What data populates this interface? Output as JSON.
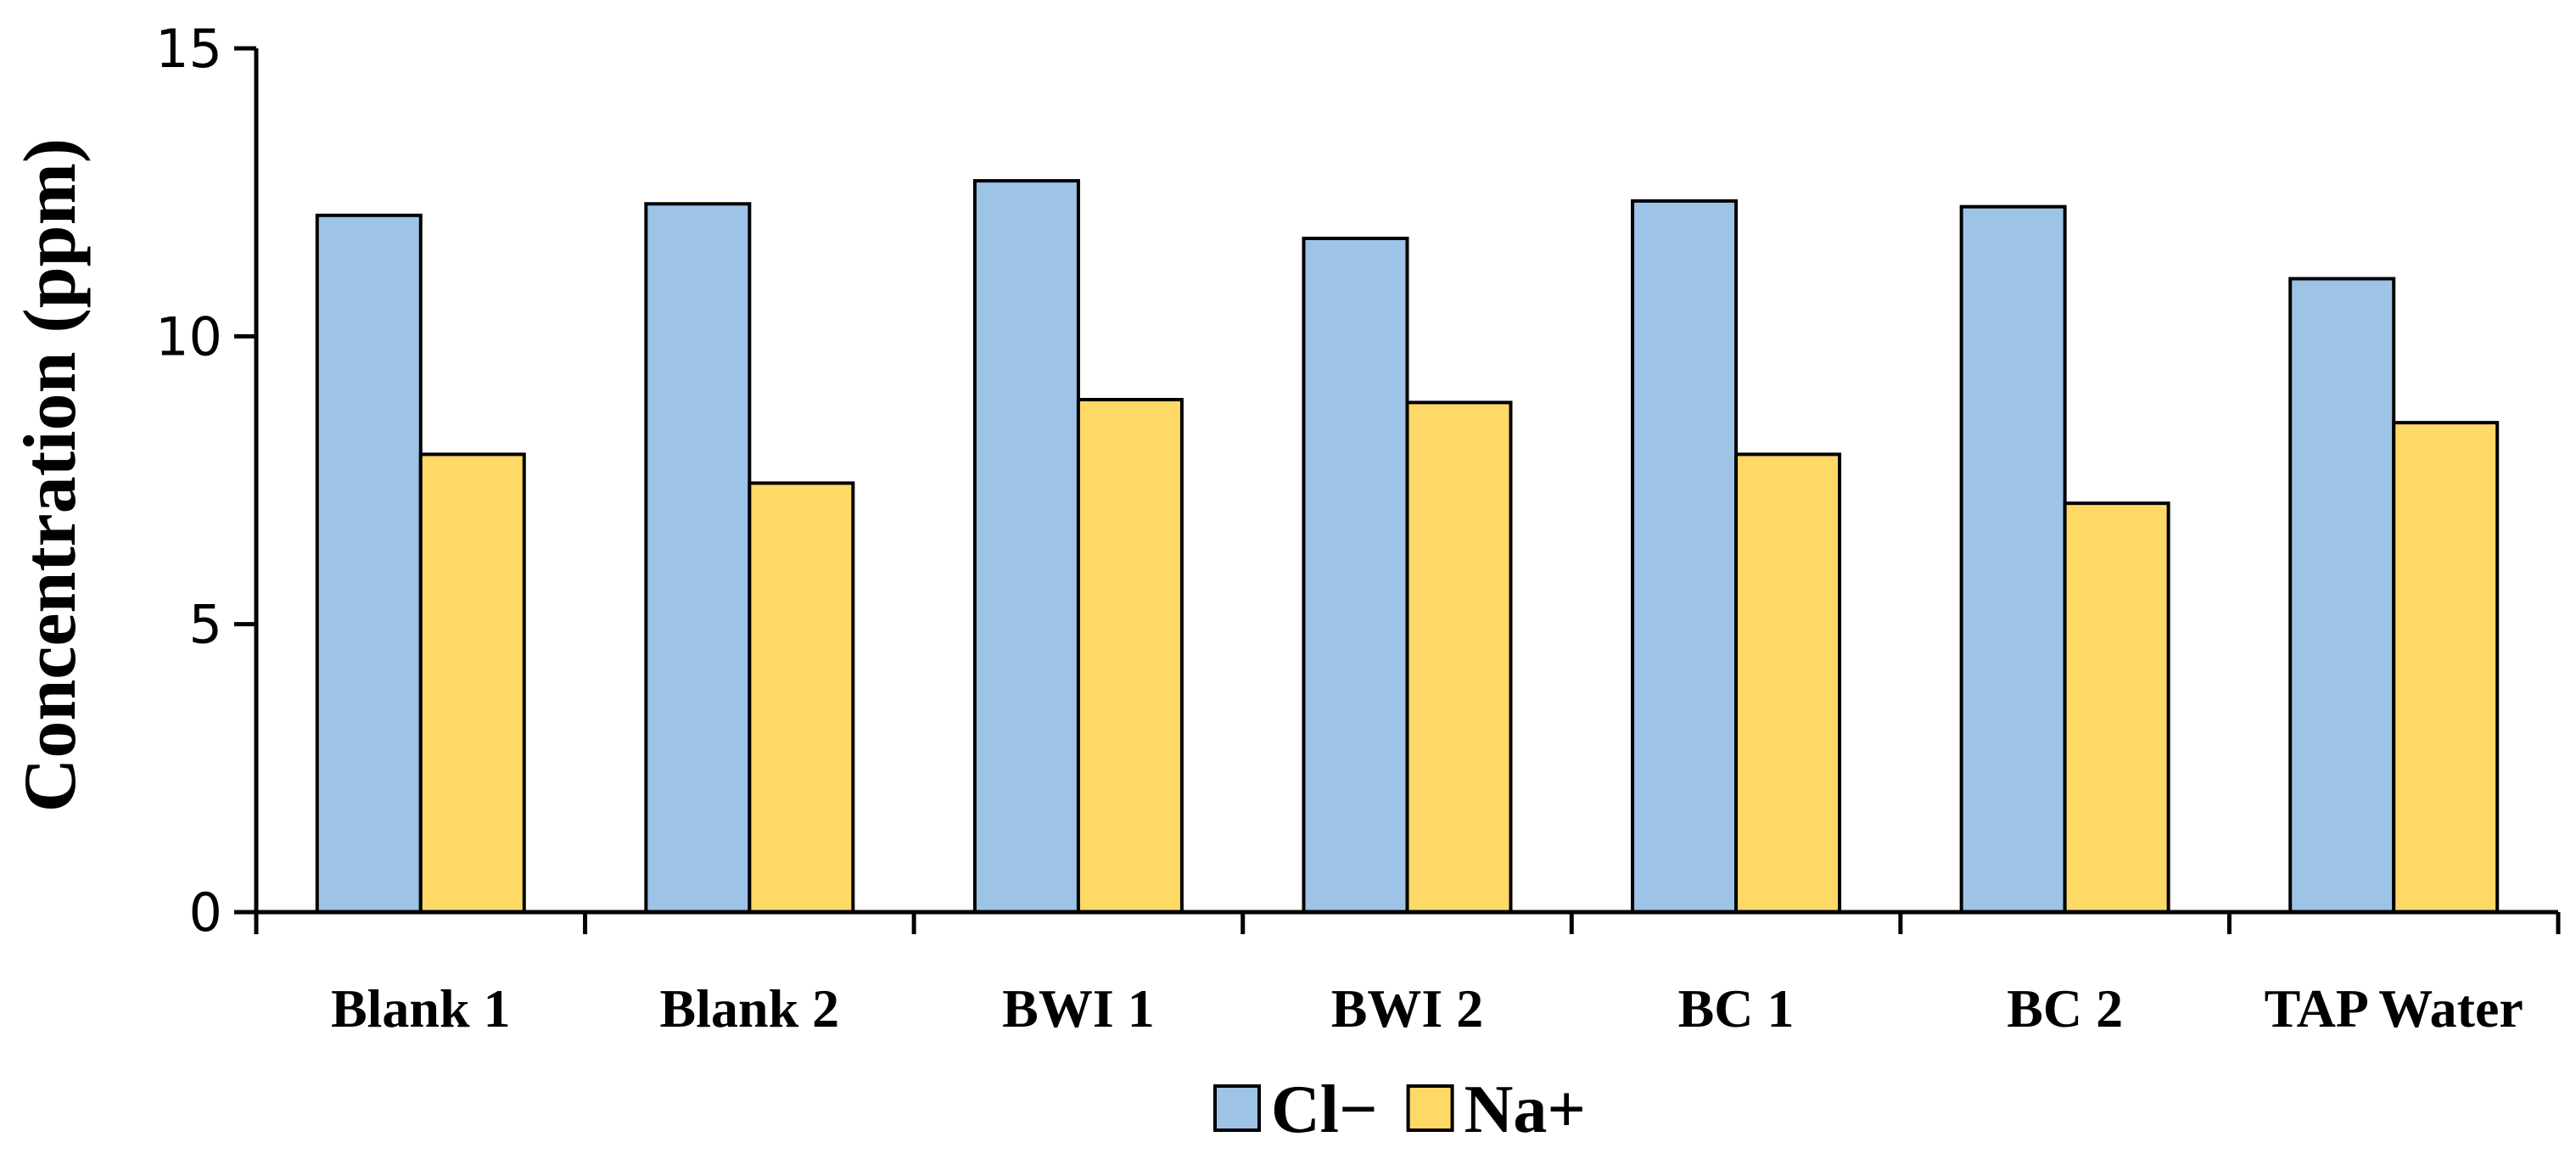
{
  "chart_data": {
    "type": "bar",
    "title": "",
    "xlabel": "",
    "ylabel": "Concentration (ppm)",
    "ylim": [
      0,
      15
    ],
    "yticks": [
      0,
      5,
      10,
      15
    ],
    "grid": false,
    "legend_position": "bottom-center",
    "categories": [
      "Blank 1",
      "Blank 2",
      "BWI 1",
      "BWI 2",
      "BC 1",
      "BC 2",
      "TAP Water"
    ],
    "series": [
      {
        "name": "Cl−",
        "color": "#9DC3E6",
        "values": [
          12.1,
          12.3,
          12.7,
          11.7,
          12.35,
          12.25,
          11.0
        ]
      },
      {
        "name": "Na+",
        "color": "#FFD966",
        "values": [
          7.95,
          7.45,
          8.9,
          8.85,
          7.95,
          7.1,
          8.5
        ]
      }
    ]
  }
}
